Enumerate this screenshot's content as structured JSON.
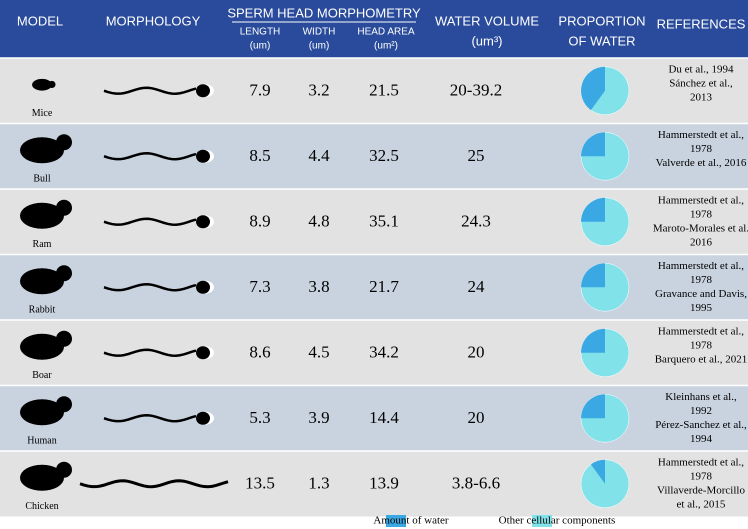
{
  "header": {
    "model": "MODEL",
    "morphology": "MORPHOLOGY",
    "morphometry": "SPERM HEAD MORPHOMETRY",
    "length": [
      "LENGTH",
      "(um)"
    ],
    "width": [
      "WIDTH",
      "(um)"
    ],
    "area": [
      "HEAD AREA",
      "(um²)"
    ],
    "water_volume": [
      "WATER VOLUME",
      "(um³)"
    ],
    "proportion": [
      "PROPORTION",
      "OF WATER"
    ],
    "references": "REFERENCES"
  },
  "rows": [
    {
      "model": "Mice",
      "length": 7.9,
      "width": 3.2,
      "area": 21.5,
      "water_volume": "20-39.2",
      "water_pct": 40,
      "references": [
        "Du et al., 1994",
        "Sánchez et al.,",
        "2013"
      ]
    },
    {
      "model": "Bull",
      "length": 8.5,
      "width": 4.4,
      "area": 32.5,
      "water_volume": "25",
      "water_pct": 25,
      "references": [
        "Hammerstedt et al.,",
        "1978",
        "Valverde et al., 2016"
      ]
    },
    {
      "model": "Ram",
      "length": 8.9,
      "width": 4.8,
      "area": 35.1,
      "water_volume": "24.3",
      "water_pct": 25,
      "references": [
        "Hammerstedt et al.,",
        "1978",
        "Maroto-Morales et al.",
        "2016"
      ]
    },
    {
      "model": "Rabbit",
      "length": 7.3,
      "width": 3.8,
      "area": 21.7,
      "water_volume": "24",
      "water_pct": 25,
      "references": [
        "Hammerstedt et al.,",
        "1978",
        "Gravance and Davis,",
        "1995"
      ]
    },
    {
      "model": "Boar",
      "length": 8.6,
      "width": 4.5,
      "area": 34.2,
      "water_volume": "20",
      "water_pct": 25,
      "references": [
        "Hammerstedt et al.,",
        "1978",
        "Barquero et al., 2021"
      ]
    },
    {
      "model": "Human",
      "length": 5.3,
      "width": 3.9,
      "area": 14.4,
      "water_volume": "20",
      "water_pct": 25,
      "references": [
        "Kleinhans et al.,",
        "1992",
        "Pérez-Sanchez et al.,",
        "1994"
      ]
    },
    {
      "model": "Chicken",
      "length": 13.5,
      "width": 1.3,
      "area": 13.9,
      "water_volume": "3.8-6.6",
      "water_pct": 10,
      "references": [
        "Hammerstedt et al.,",
        "1978",
        "Villaverde-Morcillo",
        "et al., 2015"
      ]
    }
  ],
  "legend": [
    {
      "label": "Amount of water",
      "color": "#3aa8e2"
    },
    {
      "label": "Other cellular components",
      "color": "#82e2ea"
    }
  ]
}
